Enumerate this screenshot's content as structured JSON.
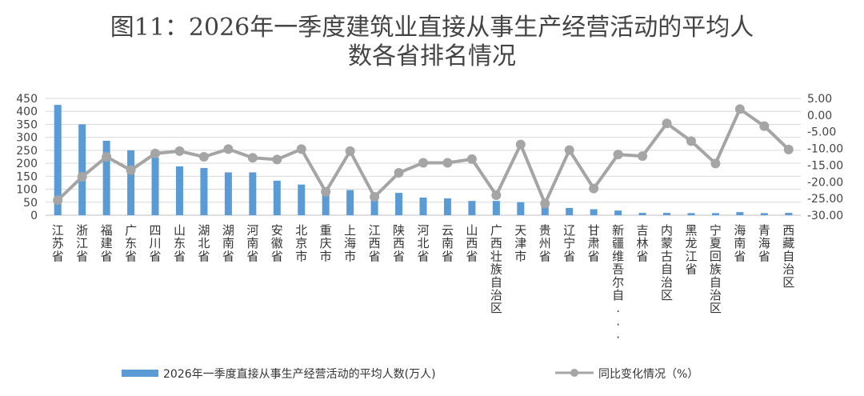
{
  "chart_data": {
    "type": "bar",
    "title_lines": [
      "图11：2026年一季度建筑业直接从事生产经营活动的平均人",
      "数各省排名情况"
    ],
    "categories": [
      "江苏省",
      "浙江省",
      "福建省",
      "广东省",
      "四川省",
      "山东省",
      "湖北省",
      "湖南省",
      "河南省",
      "安徽省",
      "北京市",
      "重庆市",
      "上海市",
      "江西省",
      "陕西省",
      "河北省",
      "云南省",
      "山西省",
      "广西壮族自治区",
      "天津市",
      "贵州省",
      "辽宁省",
      "甘肃省",
      "新疆维吾尔自...",
      "吉林省",
      "内蒙古自治区",
      "黑龙江省",
      "宁夏回族自治区",
      "海南省",
      "青海省",
      "西藏自治区"
    ],
    "series": [
      {
        "name": "2026年一季度直接从事生产经营活动的平均人数(万人)",
        "type": "bar",
        "axis": "left",
        "color": "#5b9bd5",
        "values": [
          425,
          350,
          287,
          250,
          222,
          188,
          182,
          165,
          165,
          133,
          118,
          97,
          97,
          86,
          86,
          68,
          65,
          55,
          55,
          50,
          35,
          28,
          23,
          18,
          9,
          9,
          8,
          8,
          12,
          8,
          9
        ]
      },
      {
        "name": "同比变化情况（%）",
        "type": "line",
        "axis": "right",
        "color": "#a5a5a5",
        "values": [
          -25.5,
          -18.5,
          -12.5,
          -16.5,
          -11.5,
          -10.8,
          -12.5,
          -10.2,
          -12.8,
          -13.3,
          -10.2,
          -23,
          -10.8,
          -24.5,
          -17.3,
          -14.3,
          -14.3,
          -13.2,
          -24,
          -8.8,
          -26.5,
          -10.5,
          -22,
          -11.8,
          -12.3,
          -2.5,
          -7.8,
          -14.5,
          1.8,
          -3.3,
          -10.3
        ]
      }
    ],
    "y_left": {
      "min": 0,
      "max": 450,
      "ticks": [
        "0",
        "50",
        "100",
        "150",
        "200",
        "250",
        "300",
        "350",
        "400",
        "450"
      ]
    },
    "y_right": {
      "min": -30,
      "max": 5,
      "ticks": [
        "5.00",
        "0.00",
        "-5.00",
        "-10.00",
        "-15.00",
        "-20.00",
        "-25.00",
        "-30.00"
      ]
    },
    "grid": true,
    "legend_position": "bottom"
  }
}
